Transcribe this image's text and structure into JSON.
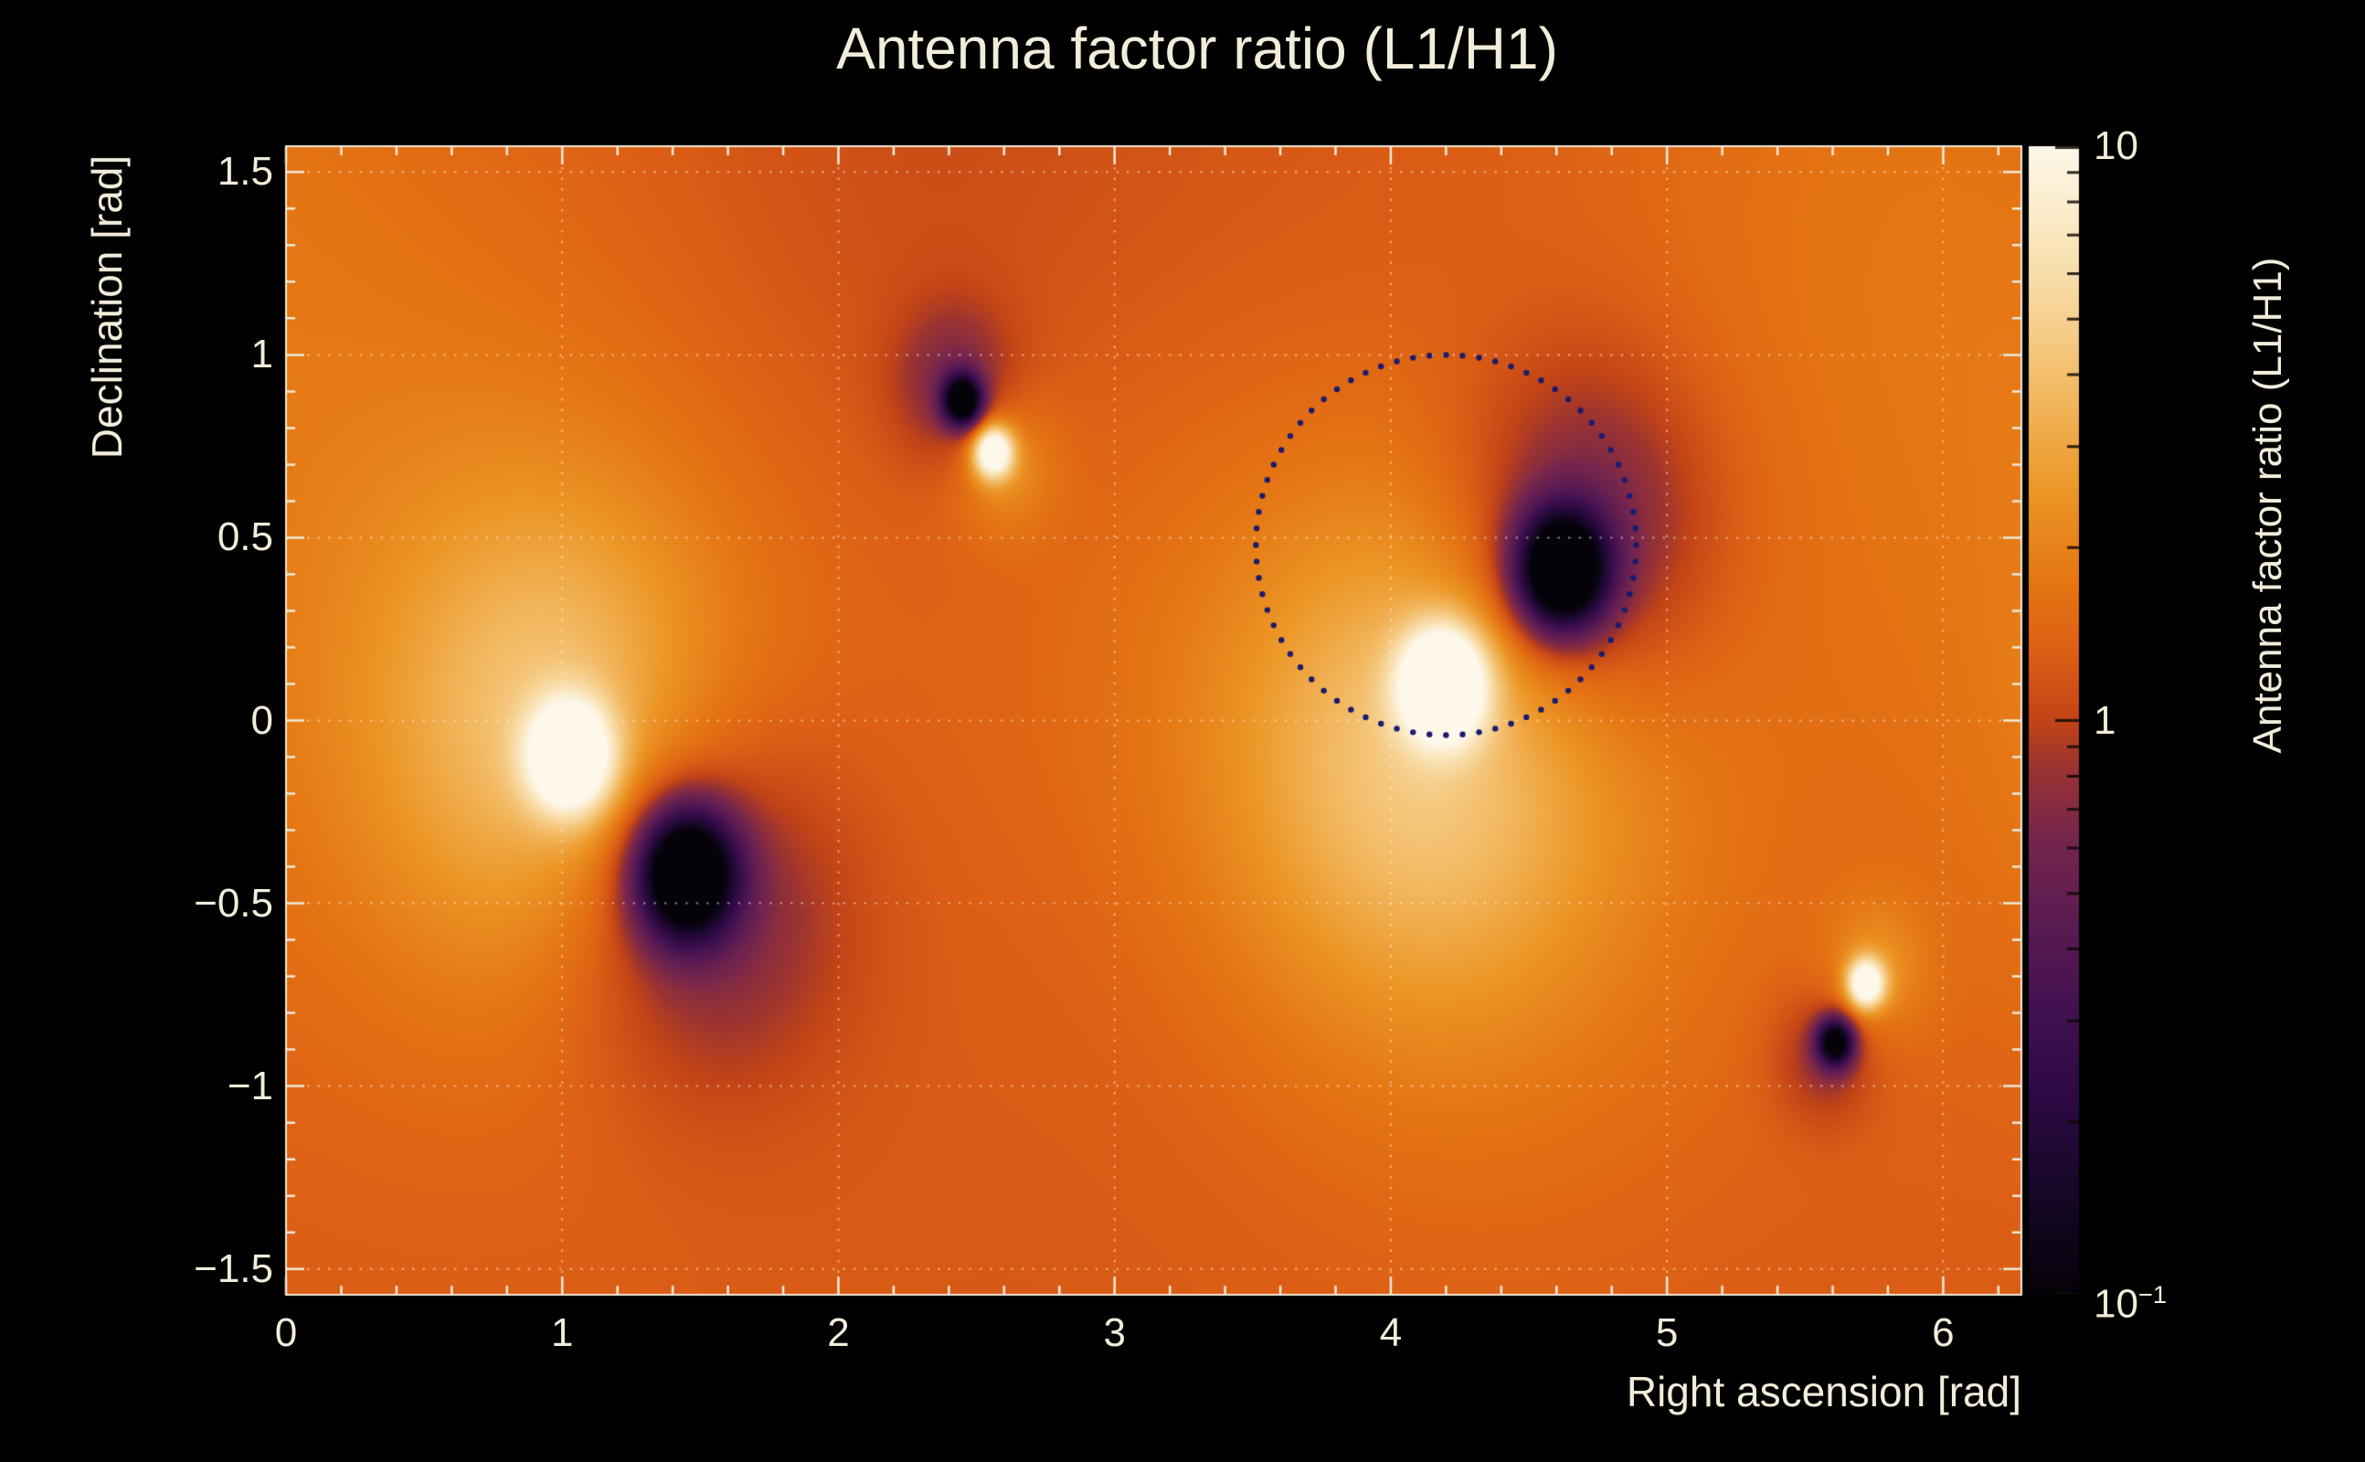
{
  "title": "Antenna factor ratio (L1/H1)",
  "chart_data": {
    "type": "heatmap",
    "title": "Antenna factor ratio (L1/H1)",
    "xlabel": "Right ascension [rad]",
    "ylabel": "Declination [rad]",
    "zlabel": "Antenna factor ratio (L1/H1)",
    "x_range": [
      0,
      6.2832
    ],
    "y_range": [
      -1.5708,
      1.5708
    ],
    "z_scale": "log",
    "z_range": [
      0.1,
      10
    ],
    "grid": true,
    "x_ticks": [
      {
        "v": 0,
        "label": "0"
      },
      {
        "v": 1,
        "label": "1"
      },
      {
        "v": 2,
        "label": "2"
      },
      {
        "v": 3,
        "label": "3"
      },
      {
        "v": 4,
        "label": "4"
      },
      {
        "v": 5,
        "label": "5"
      },
      {
        "v": 6,
        "label": "6"
      }
    ],
    "y_ticks": [
      {
        "v": 1.5,
        "label": "1.5"
      },
      {
        "v": 1.0,
        "label": "1"
      },
      {
        "v": 0.5,
        "label": "0.5"
      },
      {
        "v": 0.0,
        "label": "0"
      },
      {
        "v": -0.5,
        "label": "−0.5"
      },
      {
        "v": -1.0,
        "label": "−1"
      },
      {
        "v": -1.5,
        "label": "−1.5"
      }
    ],
    "colorbar_ticks": [
      {
        "v": 10,
        "base": "10",
        "exp": ""
      },
      {
        "v": 1,
        "base": "1",
        "exp": ""
      },
      {
        "v": 0.1,
        "base": "10",
        "exp": "−1"
      }
    ],
    "background_log10": 0.09,
    "features": [
      {
        "x": 1.03,
        "y": -0.1,
        "amp": 1.15,
        "sigma": 0.105
      },
      {
        "x": 0.98,
        "y": -0.02,
        "amp": 0.4,
        "sigma": 0.45
      },
      {
        "x": 1.45,
        "y": -0.42,
        "amp": -1.6,
        "sigma": 0.125
      },
      {
        "x": 1.52,
        "y": -0.5,
        "amp": -0.4,
        "sigma": 0.35
      },
      {
        "x": 2.45,
        "y": 0.875,
        "amp": -1.35,
        "sigma": 0.048
      },
      {
        "x": 2.42,
        "y": 0.92,
        "amp": -0.3,
        "sigma": 0.15
      },
      {
        "x": 2.56,
        "y": 0.735,
        "amp": 1.1,
        "sigma": 0.05
      },
      {
        "x": 2.6,
        "y": 0.7,
        "amp": 0.25,
        "sigma": 0.13
      },
      {
        "x": 4.19,
        "y": 0.1,
        "amp": 1.3,
        "sigma": 0.105
      },
      {
        "x": 4.1,
        "y": -0.1,
        "amp": 0.45,
        "sigma": 0.5
      },
      {
        "x": 4.62,
        "y": 0.41,
        "amp": -1.6,
        "sigma": 0.115
      },
      {
        "x": 4.7,
        "y": 0.52,
        "amp": -0.45,
        "sigma": 0.32
      },
      {
        "x": 5.72,
        "y": -0.72,
        "amp": 1.05,
        "sigma": 0.047
      },
      {
        "x": 5.76,
        "y": -0.68,
        "amp": 0.22,
        "sigma": 0.13
      },
      {
        "x": 5.61,
        "y": -0.88,
        "amp": -1.2,
        "sigma": 0.047
      },
      {
        "x": 5.57,
        "y": -0.92,
        "amp": -0.25,
        "sigma": 0.13
      },
      {
        "x": 0.7,
        "y": 0.15,
        "amp": 0.16,
        "sigma": 0.9
      },
      {
        "x": 4.45,
        "y": -0.4,
        "amp": 0.13,
        "sigma": 0.75
      },
      {
        "x": 5.8,
        "y": 1.45,
        "amp": 0.12,
        "sigma": 0.8
      },
      {
        "x": 3.1,
        "y": 0.35,
        "amp": 0.07,
        "sigma": 0.6
      },
      {
        "x": 2.3,
        "y": 1.4,
        "amp": -0.06,
        "sigma": 0.7
      }
    ],
    "annotation_circle": {
      "ra": 4.2,
      "dec": 0.48,
      "radius": 0.52,
      "style": "dotted",
      "color": "#1b1b6e"
    },
    "colormap": [
      [
        0.0,
        "#060209"
      ],
      [
        0.08,
        "#140724"
      ],
      [
        0.16,
        "#29093f"
      ],
      [
        0.24,
        "#40104f"
      ],
      [
        0.32,
        "#591b53"
      ],
      [
        0.4,
        "#77264c"
      ],
      [
        0.46,
        "#9c3331"
      ],
      [
        0.5,
        "#c24417"
      ],
      [
        0.56,
        "#dd5f15"
      ],
      [
        0.62,
        "#e57613"
      ],
      [
        0.7,
        "#ec9627"
      ],
      [
        0.78,
        "#f2b75e"
      ],
      [
        0.86,
        "#f7d598"
      ],
      [
        0.93,
        "#fbe9c4"
      ],
      [
        1.0,
        "#fdf8ea"
      ]
    ],
    "style": {
      "background": "#000000",
      "text_color": "#f2ecda",
      "axis_color": "#f0ead8"
    }
  }
}
